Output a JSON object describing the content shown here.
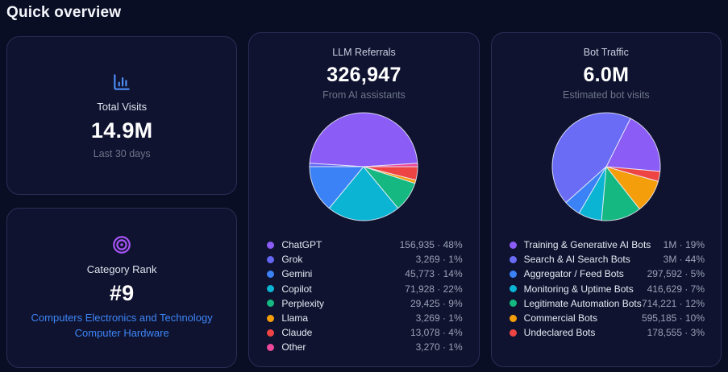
{
  "page_title": "Quick overview",
  "cards": {
    "total_visits": {
      "icon": "bar-chart-icon",
      "icon_color": "#4d8cf5",
      "label": "Total Visits",
      "value": "14.9M",
      "subtitle": "Last 30 days"
    },
    "category_rank": {
      "icon": "target-icon",
      "icon_color": "#a855f7",
      "label": "Category Rank",
      "value": "#9",
      "link_color": "#3e86f7",
      "links": [
        "Computers Electronics and Technology",
        "Computer Hardware"
      ]
    },
    "llm_referrals": {
      "title": "LLM Referrals",
      "value": "326,947",
      "subtitle": "From AI assistants"
    },
    "bot_traffic": {
      "title": "Bot Traffic",
      "value": "6.0M",
      "subtitle": "Estimated bot visits"
    }
  },
  "chart_data": [
    {
      "type": "pie",
      "title": "LLM Referrals",
      "total_label": "326,947",
      "start_angle": 86.4,
      "direction": "counterclockwise",
      "legend_position": "bottom",
      "separator": "·",
      "series": [
        {
          "name": "ChatGPT",
          "value": "156,935",
          "pct": 48,
          "color": "#8b5cf6"
        },
        {
          "name": "Grok",
          "value": "3,269",
          "pct": 1,
          "color": "#6467f2"
        },
        {
          "name": "Gemini",
          "value": "45,773",
          "pct": 14,
          "color": "#3b82f6"
        },
        {
          "name": "Copilot",
          "value": "71,928",
          "pct": 22,
          "color": "#0cb4d4"
        },
        {
          "name": "Perplexity",
          "value": "29,425",
          "pct": 9,
          "color": "#14b880"
        },
        {
          "name": "Llama",
          "value": "3,269",
          "pct": 1,
          "color": "#f59e0b"
        },
        {
          "name": "Claude",
          "value": "13,078",
          "pct": 4,
          "color": "#ef4444"
        },
        {
          "name": "Other",
          "value": "3,270",
          "pct": 1,
          "color": "#ec4899"
        }
      ]
    },
    {
      "type": "pie",
      "title": "Bot Traffic",
      "total_label": "6.0M",
      "start_angle": 95,
      "direction": "counterclockwise",
      "legend_position": "bottom",
      "separator": "·",
      "series": [
        {
          "name": "Training & Generative AI Bots",
          "value": "1M",
          "pct": 19,
          "color": "#8b5cf6"
        },
        {
          "name": "Search & AI Search Bots",
          "value": "3M",
          "pct": 44,
          "color": "#6a6cf6"
        },
        {
          "name": "Aggregator / Feed Bots",
          "value": "297,592",
          "pct": 5,
          "color": "#3b82f6"
        },
        {
          "name": "Monitoring & Uptime Bots",
          "value": "416,629",
          "pct": 7,
          "color": "#0cb4d4"
        },
        {
          "name": "Legitimate Automation Bots",
          "value": "714,221",
          "pct": 12,
          "color": "#14b880"
        },
        {
          "name": "Commercial Bots",
          "value": "595,185",
          "pct": 10,
          "color": "#f59e0b"
        },
        {
          "name": "Undeclared Bots",
          "value": "178,555",
          "pct": 3,
          "color": "#ef4444"
        }
      ]
    }
  ]
}
